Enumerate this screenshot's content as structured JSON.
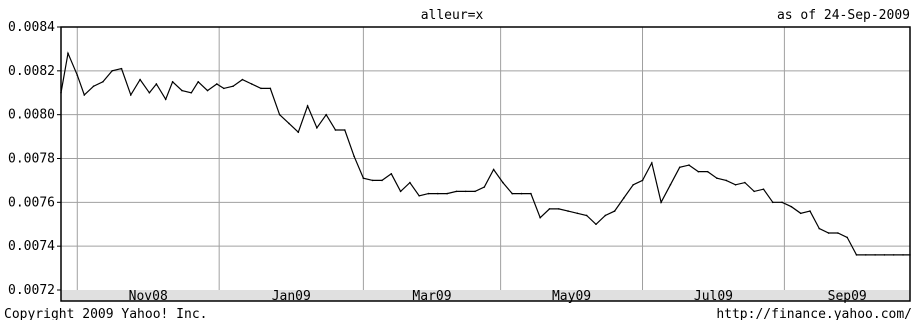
{
  "chart_data": {
    "type": "line",
    "title": "alleur=x",
    "subtitle": "as of 24-Sep-2009",
    "footer_left": "Copyright 2009 Yahoo! Inc.",
    "footer_right": "http://finance.yahoo.com/",
    "xlabel": "",
    "ylabel": "",
    "ylim": [
      0.0072,
      0.0084
    ],
    "y_ticks": [
      "0.0084",
      "0.0082",
      "0.0080",
      "0.0078",
      "0.0076",
      "0.0074",
      "0.0072"
    ],
    "x_ticks": [
      "Nov08",
      "Jan09",
      "Mar09",
      "May09",
      "Jul09",
      "Sep09"
    ],
    "x_range": [
      "2008-09-24",
      "2009-09-24"
    ],
    "x_gridlines": [
      "2008-10-01",
      "2008-12-01",
      "2009-02-01",
      "2009-04-01",
      "2009-06-01",
      "2009-08-01"
    ],
    "grid": true,
    "colors": {
      "line": "#000000",
      "grid": "#a0a0a0",
      "axis_band": "#e0e0e0",
      "frame": "#000000"
    },
    "series": [
      {
        "x": [
          "2008-09-24",
          "2008-09-27",
          "2008-10-01",
          "2008-10-04",
          "2008-10-08",
          "2008-10-12",
          "2008-10-16",
          "2008-10-20",
          "2008-10-24",
          "2008-10-28",
          "2008-11-01",
          "2008-11-04",
          "2008-11-08",
          "2008-11-11",
          "2008-11-15",
          "2008-11-19",
          "2008-11-22",
          "2008-11-26",
          "2008-11-30",
          "2008-12-03",
          "2008-12-07",
          "2008-12-11",
          "2008-12-15",
          "2008-12-19",
          "2008-12-23",
          "2008-12-27",
          "2008-12-31",
          "2009-01-04",
          "2009-01-08",
          "2009-01-12",
          "2009-01-16",
          "2009-01-20",
          "2009-01-24",
          "2009-01-28",
          "2009-02-01",
          "2009-02-05",
          "2009-02-09",
          "2009-02-13",
          "2009-02-17",
          "2009-02-21",
          "2009-02-25",
          "2009-03-01",
          "2009-03-05",
          "2009-03-09",
          "2009-03-13",
          "2009-03-17",
          "2009-03-21",
          "2009-03-25",
          "2009-03-29",
          "2009-04-02",
          "2009-04-06",
          "2009-04-10",
          "2009-04-14",
          "2009-04-18",
          "2009-04-22",
          "2009-04-26",
          "2009-04-30",
          "2009-05-04",
          "2009-05-08",
          "2009-05-12",
          "2009-05-16",
          "2009-05-20",
          "2009-05-24",
          "2009-05-28",
          "2009-06-01",
          "2009-06-05",
          "2009-06-09",
          "2009-06-13",
          "2009-06-17",
          "2009-06-21",
          "2009-06-25",
          "2009-06-29",
          "2009-07-03",
          "2009-07-07",
          "2009-07-11",
          "2009-07-15",
          "2009-07-19",
          "2009-07-23",
          "2009-07-27",
          "2009-07-31",
          "2009-08-04",
          "2009-08-08",
          "2009-08-12",
          "2009-08-16",
          "2009-08-20",
          "2009-08-24",
          "2009-08-28",
          "2009-09-01",
          "2009-09-05",
          "2009-09-09",
          "2009-09-13",
          "2009-09-17",
          "2009-09-21",
          "2009-09-24"
        ],
        "values": [
          0.0081,
          0.00828,
          0.00818,
          0.00809,
          0.00813,
          0.00815,
          0.0082,
          0.00821,
          0.00809,
          0.00816,
          0.0081,
          0.00814,
          0.00807,
          0.00815,
          0.00811,
          0.0081,
          0.00815,
          0.00811,
          0.00814,
          0.00812,
          0.00813,
          0.00816,
          0.00814,
          0.00812,
          0.00812,
          0.008,
          0.00796,
          0.00792,
          0.00804,
          0.00794,
          0.008,
          0.00793,
          0.00793,
          0.00781,
          0.00771,
          0.0077,
          0.0077,
          0.00773,
          0.00765,
          0.00769,
          0.00763,
          0.00764,
          0.00764,
          0.00764,
          0.00765,
          0.00765,
          0.00765,
          0.00767,
          0.00775,
          0.00769,
          0.00764,
          0.00764,
          0.00764,
          0.00753,
          0.00757,
          0.00757,
          0.00756,
          0.00755,
          0.00754,
          0.0075,
          0.00754,
          0.00756,
          0.00762,
          0.00768,
          0.0077,
          0.00778,
          0.0076,
          0.00768,
          0.00776,
          0.00777,
          0.00774,
          0.00774,
          0.00771,
          0.0077,
          0.00768,
          0.00769,
          0.00765,
          0.00766,
          0.0076,
          0.0076,
          0.00758,
          0.00755,
          0.00756,
          0.00748,
          0.00746,
          0.00746,
          0.00744,
          0.00736,
          0.00736,
          0.00736,
          0.00736,
          0.00736,
          0.00736,
          0.00736
        ]
      }
    ]
  }
}
